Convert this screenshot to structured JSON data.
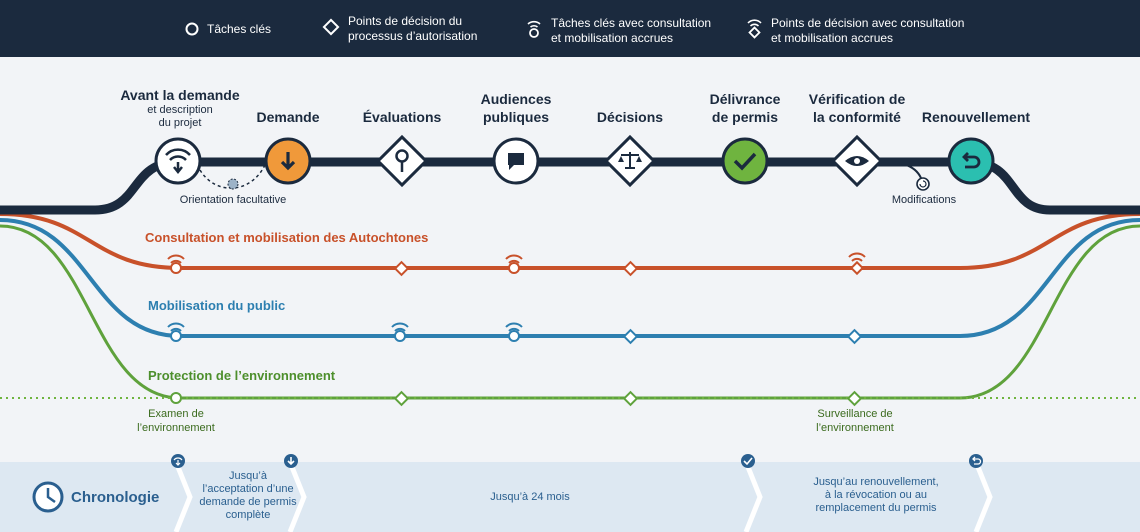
{
  "legend": {
    "key_tasks": "Tâches clés",
    "decision_points": "Points de décision du\nprocessus d’autorisation",
    "key_tasks_enhanced": "Tâches clés avec consultation\net mobilisation accrues",
    "decision_points_enhanced": "Points de décision avec consultation\net mobilisation accrues"
  },
  "stages": {
    "pre_application": "Avant la demande",
    "pre_application_sub": "et description\ndu projet",
    "application": "Demande",
    "assessments": "Évaluations",
    "hearings": "Audiences\npubliques",
    "decisions": "Décisions",
    "permitting": "Délivrance\nde permis",
    "compliance": "Vérification de\nla conformité",
    "renewal": "Renouvellement"
  },
  "notes": {
    "optional_guidance": "Orientation facultative",
    "modifications": "Modifications"
  },
  "tracks": {
    "indigenous": "Consultation et mobilisation des Autochtones",
    "public": "Mobilisation du public",
    "environment": "Protection de l’environnement",
    "env_review": "Examen de\nl’environnement",
    "env_monitoring": "Surveillance de\nl’environnement"
  },
  "timeline": {
    "title": "Chronologie",
    "phase1": "Jusqu’à\nl’acceptation d’une\ndemande de permis\ncomplète",
    "phase2": "Jusqu’à 24 mois",
    "phase3": "Jusqu’au renouvellement,\nà la révocation ou au\nremplacement du permis"
  },
  "colors": {
    "navy": "#1b2a3e",
    "orange": "#f0993a",
    "green_fill": "#6fb43f",
    "teal": "#2bbfb0",
    "indigenous_line": "#c8512a",
    "public_line": "#2d7fb0",
    "environment_line": "#5fa23c",
    "timeline_bg": "#dde8f2"
  }
}
